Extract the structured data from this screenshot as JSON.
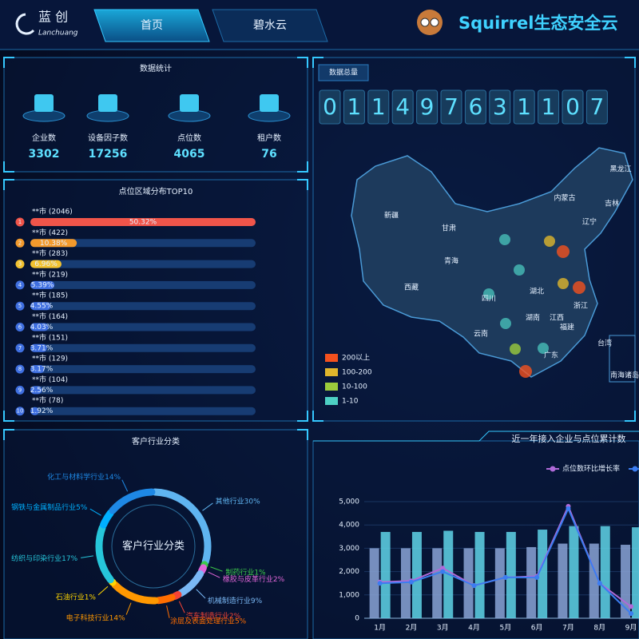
{
  "header": {
    "logo_cn": "蓝 创",
    "logo_en": "Lanchuang",
    "nav": [
      "首页",
      "碧水云"
    ],
    "title": "Squirrel生态安全云"
  },
  "stats": {
    "title": "数据统计",
    "items": [
      {
        "label": "企业数",
        "value": 3302
      },
      {
        "label": "设备因子数",
        "value": 17256
      },
      {
        "label": "点位数",
        "value": 4065
      },
      {
        "label": "租户数",
        "value": 76
      }
    ]
  },
  "total": {
    "title": "数据总量",
    "digits": [
      "0",
      "1",
      "1",
      "4",
      "9",
      "7",
      "6",
      "3",
      "1",
      "1",
      "0",
      "7"
    ]
  },
  "map": {
    "regions": [
      "新疆",
      "西藏",
      "青海",
      "甘肃",
      "内蒙古",
      "黑龙江",
      "吉林",
      "辽宁",
      "四川",
      "云南",
      "湖北",
      "湖南",
      "江西",
      "福建",
      "浙江",
      "广东",
      "台湾",
      "南海诸岛"
    ],
    "legend": [
      {
        "label": "200以上",
        "color": "#f4511e"
      },
      {
        "label": "100-200",
        "color": "#e0b62c"
      },
      {
        "label": "10-100",
        "color": "#9ccc3c"
      },
      {
        "label": "1-10",
        "color": "#4dd0c4"
      }
    ]
  },
  "chart_data": [
    {
      "type": "hbar",
      "title": "点位区域分布TOP10",
      "ranks": [
        1,
        2,
        3,
        4,
        5,
        6,
        7,
        8,
        9,
        10
      ],
      "categories": [
        "**市 (2046)",
        "**市 (422)",
        "**市 (283)",
        "**市 (219)",
        "**市 (185)",
        "**市 (164)",
        "**市 (151)",
        "**市 (129)",
        "**市 (104)",
        "**市 (78)"
      ],
      "values": [
        50.32,
        10.38,
        6.96,
        5.39,
        4.55,
        4.03,
        3.71,
        3.17,
        2.56,
        1.92
      ],
      "value_labels": [
        "50.32%",
        "10.38%",
        "6.96%",
        "5.39%",
        "4.55%",
        "4.03%",
        "3.71%",
        "3.17%",
        "2.56%",
        "1.92%"
      ],
      "colors": [
        "#f0554a",
        "#f39a2c",
        "#f2c230",
        "#3f6fe0",
        "#3f6fe0",
        "#3f6fe0",
        "#3f6fe0",
        "#3f6fe0",
        "#3f6fe0",
        "#3f6fe0"
      ]
    },
    {
      "type": "pie",
      "title": "客户行业分类",
      "center_label": "客户行业分类",
      "categories": [
        "其他行业",
        "制药行业",
        "橡胶与皮革行业",
        "机械制造行业",
        "汽车制造行业",
        "涂层及表面处理行业",
        "电子科技行业",
        "石油行业",
        "纺织与印染行业",
        "钢铁与金属制品行业",
        "化工与材料学行业"
      ],
      "values": [
        30,
        1,
        2,
        9,
        2,
        5,
        14,
        1,
        17,
        5,
        14
      ],
      "value_labels": [
        "30%",
        "1%",
        "2%",
        "9%",
        "2%",
        "5%",
        "14%",
        "1%",
        "17%",
        "5%",
        "14%"
      ],
      "colors": [
        "#5fb4f0",
        "#3cc94a",
        "#e066d8",
        "#7ab8f5",
        "#f44336",
        "#ff6d00",
        "#ff9800",
        "#ffd600",
        "#26c6da",
        "#00b0ff",
        "#1e88e5"
      ]
    },
    {
      "type": "combo",
      "title": "近一年接入企业与点位累计数",
      "categories": [
        "1月",
        "2月",
        "3月",
        "4月",
        "5月",
        "6月",
        "7月",
        "8月",
        "9月"
      ],
      "ylim": [
        0,
        5000
      ],
      "yticks": [
        0,
        {
          "value": 1000,
          "label": "1,000"
        },
        {
          "value": 2000,
          "label": "2,000"
        },
        {
          "value": 3000,
          "label": "3,000"
        },
        {
          "value": 4000,
          "label": "4,000"
        },
        {
          "value": 5000,
          "label": "5,000"
        }
      ],
      "series": [
        {
          "kind": "bar",
          "color": "#8aa3d6",
          "values": [
            3000,
            3000,
            3000,
            3000,
            3000,
            3050,
            3200,
            3200,
            3150
          ]
        },
        {
          "kind": "bar",
          "color": "#5fd3e8",
          "values": [
            3700,
            3700,
            3750,
            3700,
            3700,
            3800,
            3950,
            3950,
            3900
          ]
        },
        {
          "kind": "line",
          "name": "点位数环比增长率",
          "color": "#b06ad9",
          "values": [
            1550,
            1600,
            2150,
            1400,
            1750,
            1800,
            4800,
            1500,
            500
          ]
        },
        {
          "kind": "line",
          "color": "#3b7df0",
          "values": [
            1500,
            1550,
            2000,
            1400,
            1750,
            1750,
            4700,
            1500,
            200
          ]
        }
      ]
    }
  ]
}
